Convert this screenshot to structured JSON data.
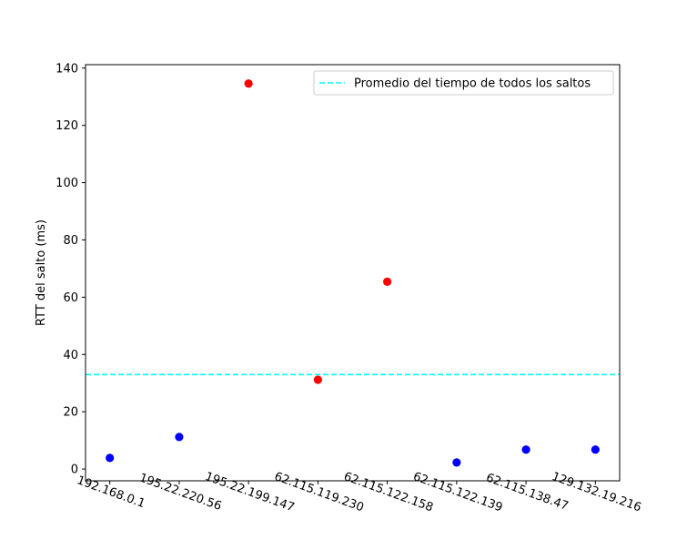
{
  "chart_data": {
    "type": "scatter",
    "categories": [
      "192.168.0.1",
      "195.22.220.56",
      "195.22.199.147",
      "62.115.119.230",
      "62.115.122.158",
      "62.115.122.139",
      "62.115.138.47",
      "129.132.19.216"
    ],
    "values": [
      3.9,
      11.2,
      134.6,
      31.2,
      65.4,
      2.3,
      6.8,
      6.8
    ],
    "point_colors": [
      "#0000ff",
      "#0000ff",
      "#ff0000",
      "#ff0000",
      "#ff0000",
      "#0000ff",
      "#0000ff",
      "#0000ff"
    ],
    "average_line": {
      "value": 33.0,
      "label": "Promedio del tiempo de todos los saltos",
      "color": "#00ffff",
      "style": "dashed"
    },
    "ylabel": "RTT del salto (ms)",
    "xlabel": "",
    "title": "",
    "ylim": [
      -4.1,
      141.2
    ],
    "yticks": [
      0,
      20,
      40,
      60,
      80,
      100,
      120,
      140
    ],
    "grid": false,
    "legend_position": "top-right"
  }
}
